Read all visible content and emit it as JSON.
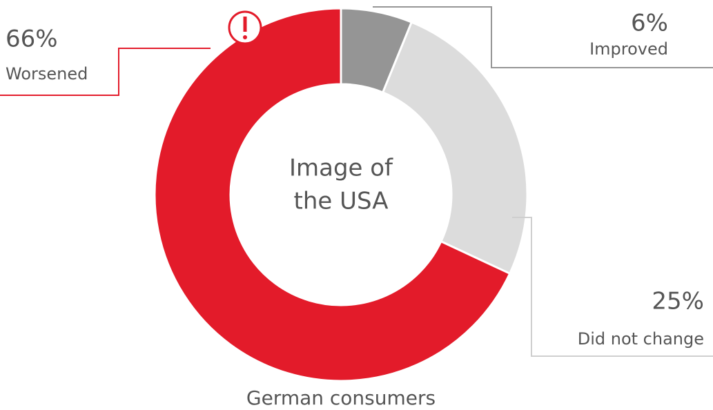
{
  "chart_data": {
    "type": "donut",
    "center_text": [
      "Image of",
      "the USA"
    ],
    "caption": "German consumers",
    "categories": [
      "Improved",
      "Did not change",
      "Worsened"
    ],
    "values": [
      6,
      25,
      66
    ],
    "value_labels": [
      "6%",
      "25%",
      "66%"
    ],
    "colors": [
      "#959595",
      "#dcdcdc",
      "#e31b2a"
    ]
  }
}
